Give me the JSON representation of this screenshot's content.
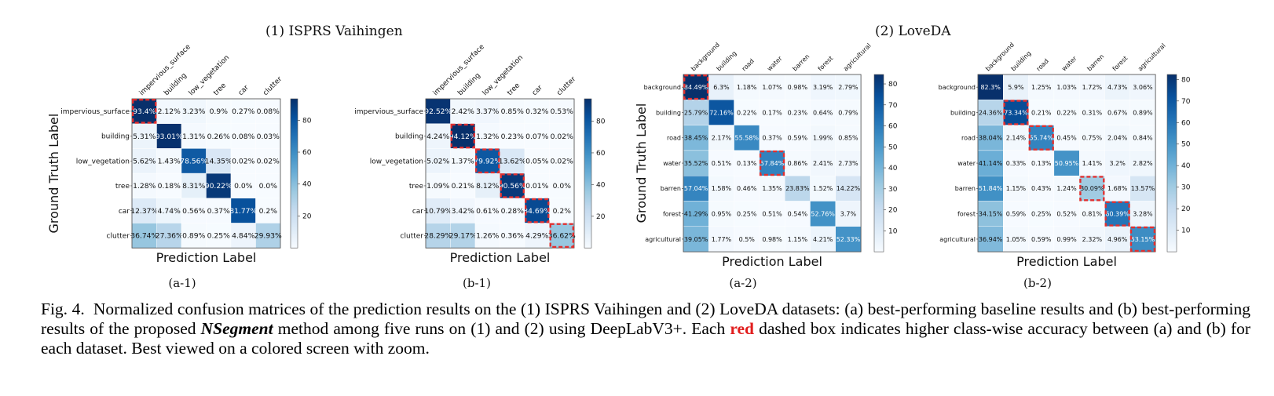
{
  "group_titles": [
    "(1) ISPRS Vaihingen",
    "(2) LoveDA"
  ],
  "common": {
    "ylabel": "Ground Truth Label",
    "xlabel": "Prediction Label",
    "colorscale": [
      "#f7fbff",
      "#deebf7",
      "#c6dbef",
      "#9ecae1",
      "#6baed6",
      "#4292c6",
      "#2171b5",
      "#08519c",
      "#08306b"
    ],
    "highlight_color": "#e03030"
  },
  "chart_data": [
    {
      "type": "heatmap",
      "panel_label": "(a-1)",
      "xlabel": "Prediction Label",
      "ylabel": "Ground Truth Label",
      "classes": [
        "impervious_surface",
        "building",
        "low_vegetation",
        "tree",
        "car",
        "clutter"
      ],
      "values": [
        [
          93.4,
          2.12,
          3.23,
          0.9,
          0.27,
          0.08
        ],
        [
          5.31,
          93.01,
          1.31,
          0.26,
          0.08,
          0.03
        ],
        [
          5.62,
          1.43,
          78.56,
          14.35,
          0.02,
          0.02
        ],
        [
          1.28,
          0.18,
          8.31,
          90.22,
          0.0,
          0.0
        ],
        [
          12.37,
          4.74,
          0.56,
          0.37,
          81.77,
          0.2
        ],
        [
          36.74,
          27.36,
          0.89,
          0.25,
          4.84,
          29.93
        ]
      ],
      "labels": [
        [
          "93.4%",
          "2.12%",
          "3.23%",
          "0.9%",
          "0.27%",
          "0.08%"
        ],
        [
          "5.31%",
          "93.01%",
          "1.31%",
          "0.26%",
          "0.08%",
          "0.03%"
        ],
        [
          "5.62%",
          "1.43%",
          "78.56%",
          "14.35%",
          "0.02%",
          "0.02%"
        ],
        [
          "1.28%",
          "0.18%",
          "8.31%",
          "90.22%",
          "0.0%",
          "0.0%"
        ],
        [
          "12.37%",
          "4.74%",
          "0.56%",
          "0.37%",
          "81.77%",
          "0.2%"
        ],
        [
          "36.74%",
          "27.36%",
          "0.89%",
          "0.25%",
          "4.84%",
          "29.93%"
        ]
      ],
      "highlight": [
        0
      ],
      "colorbar_ticks": [
        20,
        40,
        60,
        80
      ],
      "value_range": [
        0,
        93.4
      ]
    },
    {
      "type": "heatmap",
      "panel_label": "(b-1)",
      "xlabel": "Prediction Label",
      "ylabel": "",
      "classes": [
        "impervious_surface",
        "building",
        "low_vegetation",
        "tree",
        "car",
        "clutter"
      ],
      "values": [
        [
          92.52,
          2.42,
          3.37,
          0.85,
          0.32,
          0.53
        ],
        [
          4.24,
          94.12,
          1.32,
          0.23,
          0.07,
          0.02
        ],
        [
          5.02,
          1.37,
          79.92,
          13.62,
          0.05,
          0.02
        ],
        [
          1.09,
          0.21,
          8.12,
          90.56,
          0.01,
          0.0
        ],
        [
          10.79,
          3.42,
          0.61,
          0.28,
          84.69,
          0.2
        ],
        [
          28.29,
          29.17,
          1.26,
          0.36,
          4.29,
          36.62
        ]
      ],
      "labels": [
        [
          "92.52%",
          "2.42%",
          "3.37%",
          "0.85%",
          "0.32%",
          "0.53%"
        ],
        [
          "4.24%",
          "94.12%",
          "1.32%",
          "0.23%",
          "0.07%",
          "0.02%"
        ],
        [
          "5.02%",
          "1.37%",
          "79.92%",
          "13.62%",
          "0.05%",
          "0.02%"
        ],
        [
          "1.09%",
          "0.21%",
          "8.12%",
          "90.56%",
          "0.01%",
          "0.0%"
        ],
        [
          "10.79%",
          "3.42%",
          "0.61%",
          "0.28%",
          "84.69%",
          "0.2%"
        ],
        [
          "28.29%",
          "29.17%",
          "1.26%",
          "0.36%",
          "4.29%",
          "36.62%"
        ]
      ],
      "highlight": [
        1,
        2,
        3,
        4,
        5
      ],
      "colorbar_ticks": [
        20,
        40,
        60,
        80
      ],
      "value_range": [
        0,
        94.12
      ]
    },
    {
      "type": "heatmap",
      "panel_label": "(a-2)",
      "xlabel": "Prediction Label",
      "ylabel": "Ground Truth Label",
      "classes": [
        "background",
        "building",
        "road",
        "water",
        "barren",
        "forest",
        "agricultural"
      ],
      "values": [
        [
          84.49,
          6.3,
          1.18,
          1.07,
          0.98,
          3.19,
          2.79
        ],
        [
          25.79,
          72.16,
          0.22,
          0.17,
          0.23,
          0.64,
          0.79
        ],
        [
          38.45,
          2.17,
          55.58,
          0.37,
          0.59,
          1.99,
          0.85
        ],
        [
          35.52,
          0.51,
          0.13,
          57.84,
          0.86,
          2.41,
          2.73
        ],
        [
          57.04,
          1.58,
          0.46,
          1.35,
          23.83,
          1.52,
          14.22
        ],
        [
          41.29,
          0.95,
          0.25,
          0.51,
          0.54,
          52.76,
          3.7
        ],
        [
          39.05,
          1.77,
          0.5,
          0.98,
          1.15,
          4.21,
          52.33
        ]
      ],
      "labels": [
        [
          "84.49%",
          "6.3%",
          "1.18%",
          "1.07%",
          "0.98%",
          "3.19%",
          "2.79%"
        ],
        [
          "25.79%",
          "72.16%",
          "0.22%",
          "0.17%",
          "0.23%",
          "0.64%",
          "0.79%"
        ],
        [
          "38.45%",
          "2.17%",
          "55.58%",
          "0.37%",
          "0.59%",
          "1.99%",
          "0.85%"
        ],
        [
          "35.52%",
          "0.51%",
          "0.13%",
          "57.84%",
          "0.86%",
          "2.41%",
          "2.73%"
        ],
        [
          "57.04%",
          "1.58%",
          "0.46%",
          "1.35%",
          "23.83%",
          "1.52%",
          "14.22%"
        ],
        [
          "41.29%",
          "0.95%",
          "0.25%",
          "0.51%",
          "0.54%",
          "52.76%",
          "3.7%"
        ],
        [
          "39.05%",
          "1.77%",
          "0.5%",
          "0.98%",
          "1.15%",
          "4.21%",
          "52.33%"
        ]
      ],
      "highlight": [
        0,
        3
      ],
      "colorbar_ticks": [
        10,
        20,
        30,
        40,
        50,
        60,
        70,
        80
      ],
      "value_range": [
        0,
        84.49
      ]
    },
    {
      "type": "heatmap",
      "panel_label": "(b-2)",
      "xlabel": "Prediction Label",
      "ylabel": "",
      "classes": [
        "background",
        "building",
        "road",
        "water",
        "barren",
        "forest",
        "agricultural"
      ],
      "values": [
        [
          82.3,
          5.9,
          1.25,
          1.03,
          1.72,
          4.73,
          3.06
        ],
        [
          24.36,
          73.34,
          0.21,
          0.22,
          0.31,
          0.67,
          0.89
        ],
        [
          38.04,
          2.14,
          55.74,
          0.45,
          0.75,
          2.04,
          0.84
        ],
        [
          41.14,
          0.33,
          0.13,
          50.95,
          1.41,
          3.2,
          2.82
        ],
        [
          51.84,
          1.15,
          0.43,
          1.24,
          30.09,
          1.68,
          13.57
        ],
        [
          34.15,
          0.59,
          0.25,
          0.52,
          0.81,
          60.39,
          3.28
        ],
        [
          36.94,
          1.05,
          0.59,
          0.99,
          2.32,
          4.96,
          53.15
        ]
      ],
      "labels": [
        [
          "82.3%",
          "5.9%",
          "1.25%",
          "1.03%",
          "1.72%",
          "4.73%",
          "3.06%"
        ],
        [
          "24.36%",
          "73.34%",
          "0.21%",
          "0.22%",
          "0.31%",
          "0.67%",
          "0.89%"
        ],
        [
          "38.04%",
          "2.14%",
          "55.74%",
          "0.45%",
          "0.75%",
          "2.04%",
          "0.84%"
        ],
        [
          "41.14%",
          "0.33%",
          "0.13%",
          "50.95%",
          "1.41%",
          "3.2%",
          "2.82%"
        ],
        [
          "51.84%",
          "1.15%",
          "0.43%",
          "1.24%",
          "30.09%",
          "1.68%",
          "13.57%"
        ],
        [
          "34.15%",
          "0.59%",
          "0.25%",
          "0.52%",
          "0.81%",
          "60.39%",
          "3.28%"
        ],
        [
          "36.94%",
          "1.05%",
          "0.59%",
          "0.99%",
          "2.32%",
          "4.96%",
          "53.15%"
        ]
      ],
      "highlight": [
        1,
        2,
        4,
        5,
        6
      ],
      "colorbar_ticks": [
        10,
        20,
        30,
        40,
        50,
        60,
        70,
        80
      ],
      "value_range": [
        0,
        82.3
      ]
    }
  ],
  "caption": {
    "fig_label": "Fig. 4.",
    "text_before": "Normalized confusion matrices of the prediction results on the (1) ISPRS Vaihingen and (2) LoveDA datasets: (a) best-performing baseline results and (b) best-performing results of the proposed",
    "method_name": "NSegment",
    "text_middle": "method among five runs on (1) and (2) using DeepLabV3+. Each",
    "red_word": "red",
    "text_after": "dashed box indicates higher class-wise accuracy between (a) and (b) for each dataset. Best viewed on a colored screen with zoom."
  }
}
